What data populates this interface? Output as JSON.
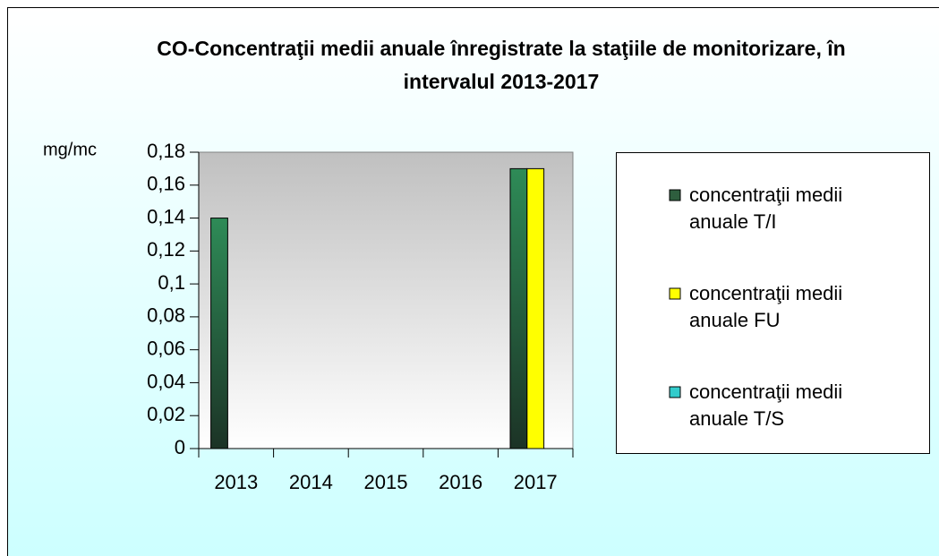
{
  "chart_data": {
    "type": "bar",
    "title": "CO-Concentraţii medii anuale înregistrate la staţiile de monitorizare, în intervalul 2013-2017",
    "y_label": "mg/mc",
    "categories": [
      "2013",
      "2014",
      "2015",
      "2016",
      "2017"
    ],
    "series": [
      {
        "name": "concentraţii medii anuale T/I",
        "color": "#2e8b57",
        "values": [
          0.14,
          null,
          null,
          null,
          0.17
        ]
      },
      {
        "name": "concentraţii medii anuale FU",
        "color": "#ffff00",
        "values": [
          null,
          null,
          null,
          null,
          0.17
        ]
      },
      {
        "name": "concentraţii medii anuale T/S",
        "color": "#33cccc",
        "values": [
          null,
          null,
          null,
          null,
          null
        ]
      }
    ],
    "ylim": [
      0,
      0.18
    ],
    "yticks": [
      0,
      {
        "value": 0.02,
        "label": "0,02"
      },
      {
        "value": 0.04,
        "label": "0,04"
      },
      {
        "value": 0.06,
        "label": "0,06"
      },
      {
        "value": 0.08,
        "label": "0,08"
      },
      {
        "value": 0.1,
        "label": "0,1"
      },
      {
        "value": 0.12,
        "label": "0,12"
      },
      {
        "value": 0.14,
        "label": "0,14"
      },
      {
        "value": 0.16,
        "label": "0,16"
      },
      {
        "value": 0.18,
        "label": "0,18"
      }
    ],
    "legend": "right"
  }
}
